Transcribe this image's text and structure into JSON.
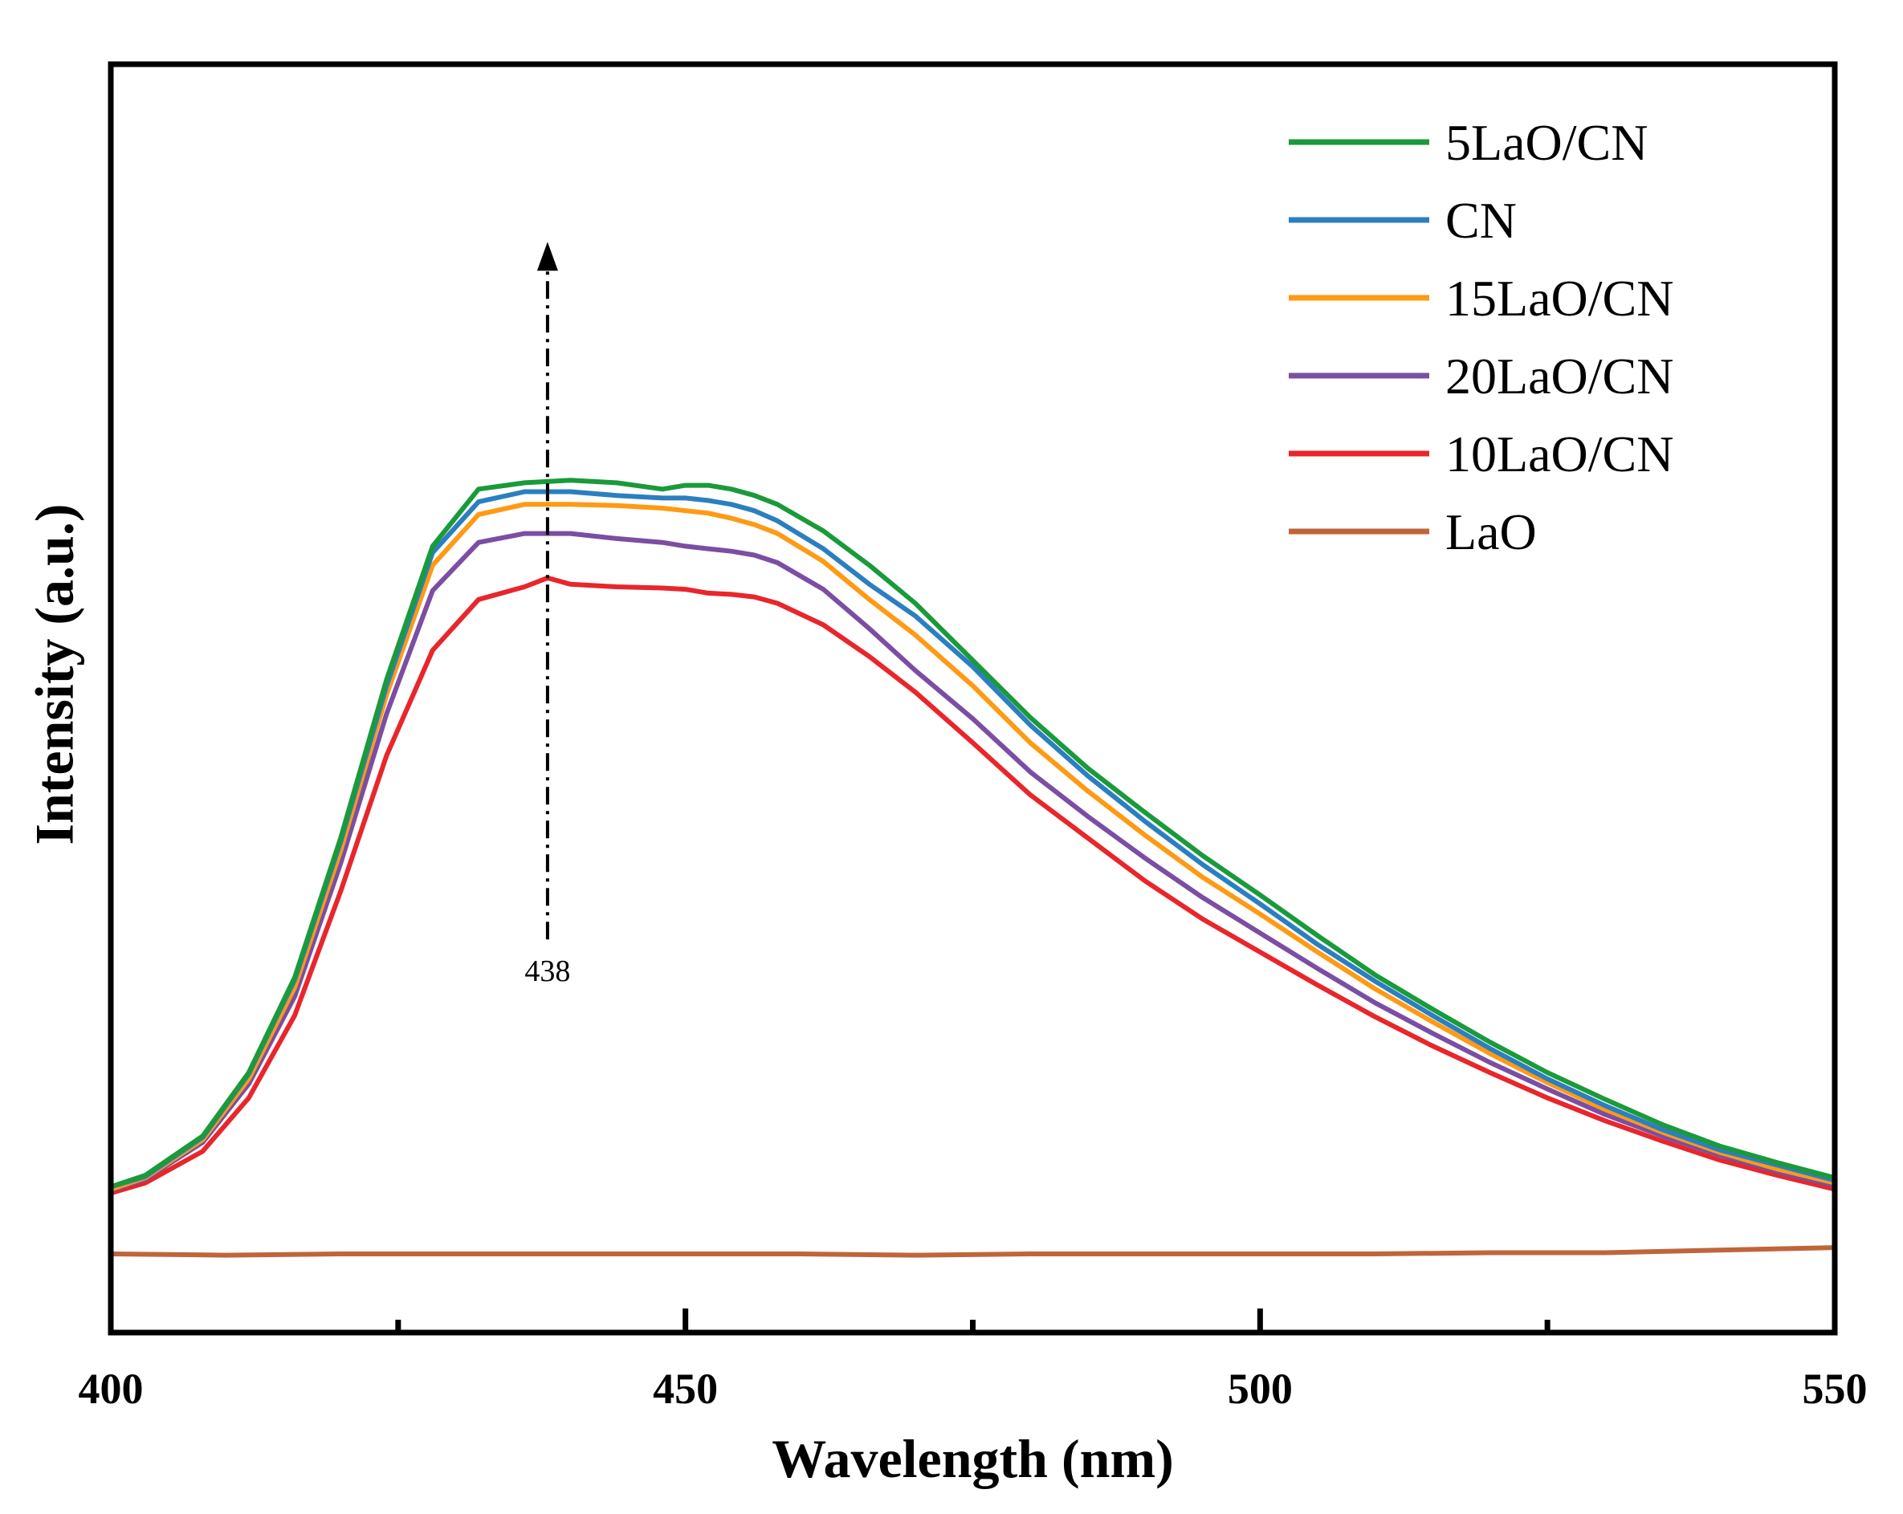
{
  "chart_data": {
    "type": "line",
    "title": "",
    "xlabel": "Wavelength (nm)",
    "ylabel": "Intensity (a.u.)",
    "xlim": [
      400,
      550
    ],
    "ylim": [
      0,
      100
    ],
    "x_ticks": [
      400,
      450,
      500,
      550
    ],
    "x_tick_labels": [
      "400",
      "450",
      "500",
      "550"
    ],
    "x_minor_ticks": [
      425,
      475,
      525
    ],
    "y_ticks_labeled": false,
    "grid": false,
    "legend_position": "top-right",
    "colors": {
      "5LaO/CN": "#1a9a3a",
      "CN": "#2b7fc0",
      "15LaO/CN": "#ff9a14",
      "20LaO/CN": "#7b4ea3",
      "10LaO/CN": "#e8262b",
      "LaO": "#c0653a"
    },
    "series": [
      {
        "name": "5LaO/CN",
        "x": [
          400,
          403,
          408,
          412,
          416,
          420,
          424,
          428,
          432,
          436,
          440,
          444,
          448,
          450,
          452,
          454,
          456,
          458,
          462,
          466,
          470,
          475,
          480,
          485,
          490,
          495,
          500,
          505,
          510,
          515,
          520,
          525,
          530,
          535,
          540,
          545,
          550
        ],
        "values": [
          11.5,
          12.4,
          15.5,
          20.5,
          28.0,
          39.0,
          51.5,
          62.0,
          66.5,
          67.0,
          67.2,
          67.0,
          66.5,
          66.8,
          66.8,
          66.5,
          66.0,
          65.3,
          63.2,
          60.5,
          57.5,
          53.0,
          48.5,
          44.5,
          41.0,
          37.6,
          34.5,
          31.3,
          28.2,
          25.5,
          22.9,
          20.5,
          18.4,
          16.4,
          14.7,
          13.4,
          12.2
        ]
      },
      {
        "name": "CN",
        "x": [
          400,
          403,
          408,
          412,
          416,
          420,
          424,
          428,
          432,
          436,
          440,
          444,
          448,
          450,
          452,
          454,
          456,
          458,
          462,
          466,
          470,
          475,
          480,
          485,
          490,
          495,
          500,
          505,
          510,
          515,
          520,
          525,
          530,
          535,
          540,
          545,
          550
        ],
        "values": [
          11.5,
          12.3,
          15.4,
          20.4,
          27.8,
          38.7,
          51.0,
          61.5,
          65.5,
          66.3,
          66.3,
          66.0,
          65.8,
          65.8,
          65.6,
          65.3,
          64.8,
          64.0,
          61.8,
          59.0,
          56.5,
          52.5,
          47.9,
          43.9,
          40.3,
          36.9,
          33.8,
          30.6,
          27.7,
          25.0,
          22.4,
          20.0,
          17.9,
          16.0,
          14.4,
          13.2,
          12.0
        ]
      },
      {
        "name": "15LaO/CN",
        "x": [
          400,
          403,
          408,
          412,
          416,
          420,
          424,
          428,
          432,
          436,
          440,
          444,
          448,
          450,
          452,
          454,
          456,
          458,
          462,
          466,
          470,
          475,
          480,
          485,
          490,
          495,
          500,
          505,
          510,
          515,
          520,
          525,
          530,
          535,
          540,
          545,
          550
        ],
        "values": [
          11.3,
          12.2,
          15.2,
          20.0,
          27.2,
          38.0,
          50.3,
          60.5,
          64.5,
          65.3,
          65.3,
          65.2,
          65.0,
          64.8,
          64.6,
          64.2,
          63.7,
          63.0,
          60.8,
          57.8,
          55.0,
          51.0,
          46.5,
          42.7,
          39.2,
          35.9,
          33.0,
          30.0,
          27.1,
          24.5,
          22.0,
          19.7,
          17.6,
          15.8,
          14.2,
          12.9,
          11.8
        ]
      },
      {
        "name": "20LaO/CN",
        "x": [
          400,
          403,
          408,
          412,
          416,
          420,
          424,
          428,
          432,
          436,
          440,
          444,
          448,
          450,
          452,
          454,
          456,
          458,
          462,
          466,
          470,
          475,
          480,
          485,
          490,
          495,
          500,
          505,
          510,
          515,
          520,
          525,
          530,
          535,
          540,
          545,
          550
        ],
        "values": [
          11.2,
          12.1,
          15.0,
          19.6,
          26.5,
          37.0,
          48.8,
          58.5,
          62.3,
          63.0,
          63.0,
          62.6,
          62.3,
          62.0,
          61.8,
          61.6,
          61.3,
          60.7,
          58.6,
          55.5,
          52.2,
          48.4,
          44.2,
          40.7,
          37.4,
          34.3,
          31.5,
          28.7,
          26.0,
          23.6,
          21.3,
          19.2,
          17.2,
          15.5,
          14.0,
          12.7,
          11.6
        ]
      },
      {
        "name": "10LaO/CN",
        "x": [
          400,
          403,
          408,
          412,
          416,
          420,
          424,
          428,
          432,
          436,
          438,
          440,
          444,
          448,
          450,
          452,
          454,
          456,
          458,
          462,
          466,
          470,
          475,
          480,
          485,
          490,
          495,
          500,
          505,
          510,
          515,
          520,
          525,
          530,
          535,
          540,
          545,
          550
        ],
        "values": [
          11.0,
          11.8,
          14.3,
          18.5,
          25.0,
          34.8,
          45.5,
          53.8,
          57.8,
          58.8,
          59.5,
          59.0,
          58.8,
          58.7,
          58.6,
          58.3,
          58.2,
          58.0,
          57.5,
          55.8,
          53.3,
          50.5,
          46.5,
          42.4,
          39.0,
          35.6,
          32.6,
          30.0,
          27.4,
          24.9,
          22.6,
          20.5,
          18.5,
          16.7,
          15.1,
          13.6,
          12.4,
          11.3
        ]
      },
      {
        "name": "LaO",
        "x": [
          400,
          410,
          420,
          430,
          440,
          450,
          460,
          470,
          480,
          490,
          500,
          510,
          520,
          530,
          540,
          550
        ],
        "values": [
          6.2,
          6.1,
          6.2,
          6.2,
          6.2,
          6.2,
          6.2,
          6.1,
          6.2,
          6.2,
          6.2,
          6.2,
          6.3,
          6.3,
          6.5,
          6.7
        ]
      }
    ],
    "annotations": [
      {
        "type": "arrow",
        "x": 438,
        "y_from": 31,
        "y_to": 86,
        "style": "dash-dot",
        "label": "438"
      }
    ]
  }
}
